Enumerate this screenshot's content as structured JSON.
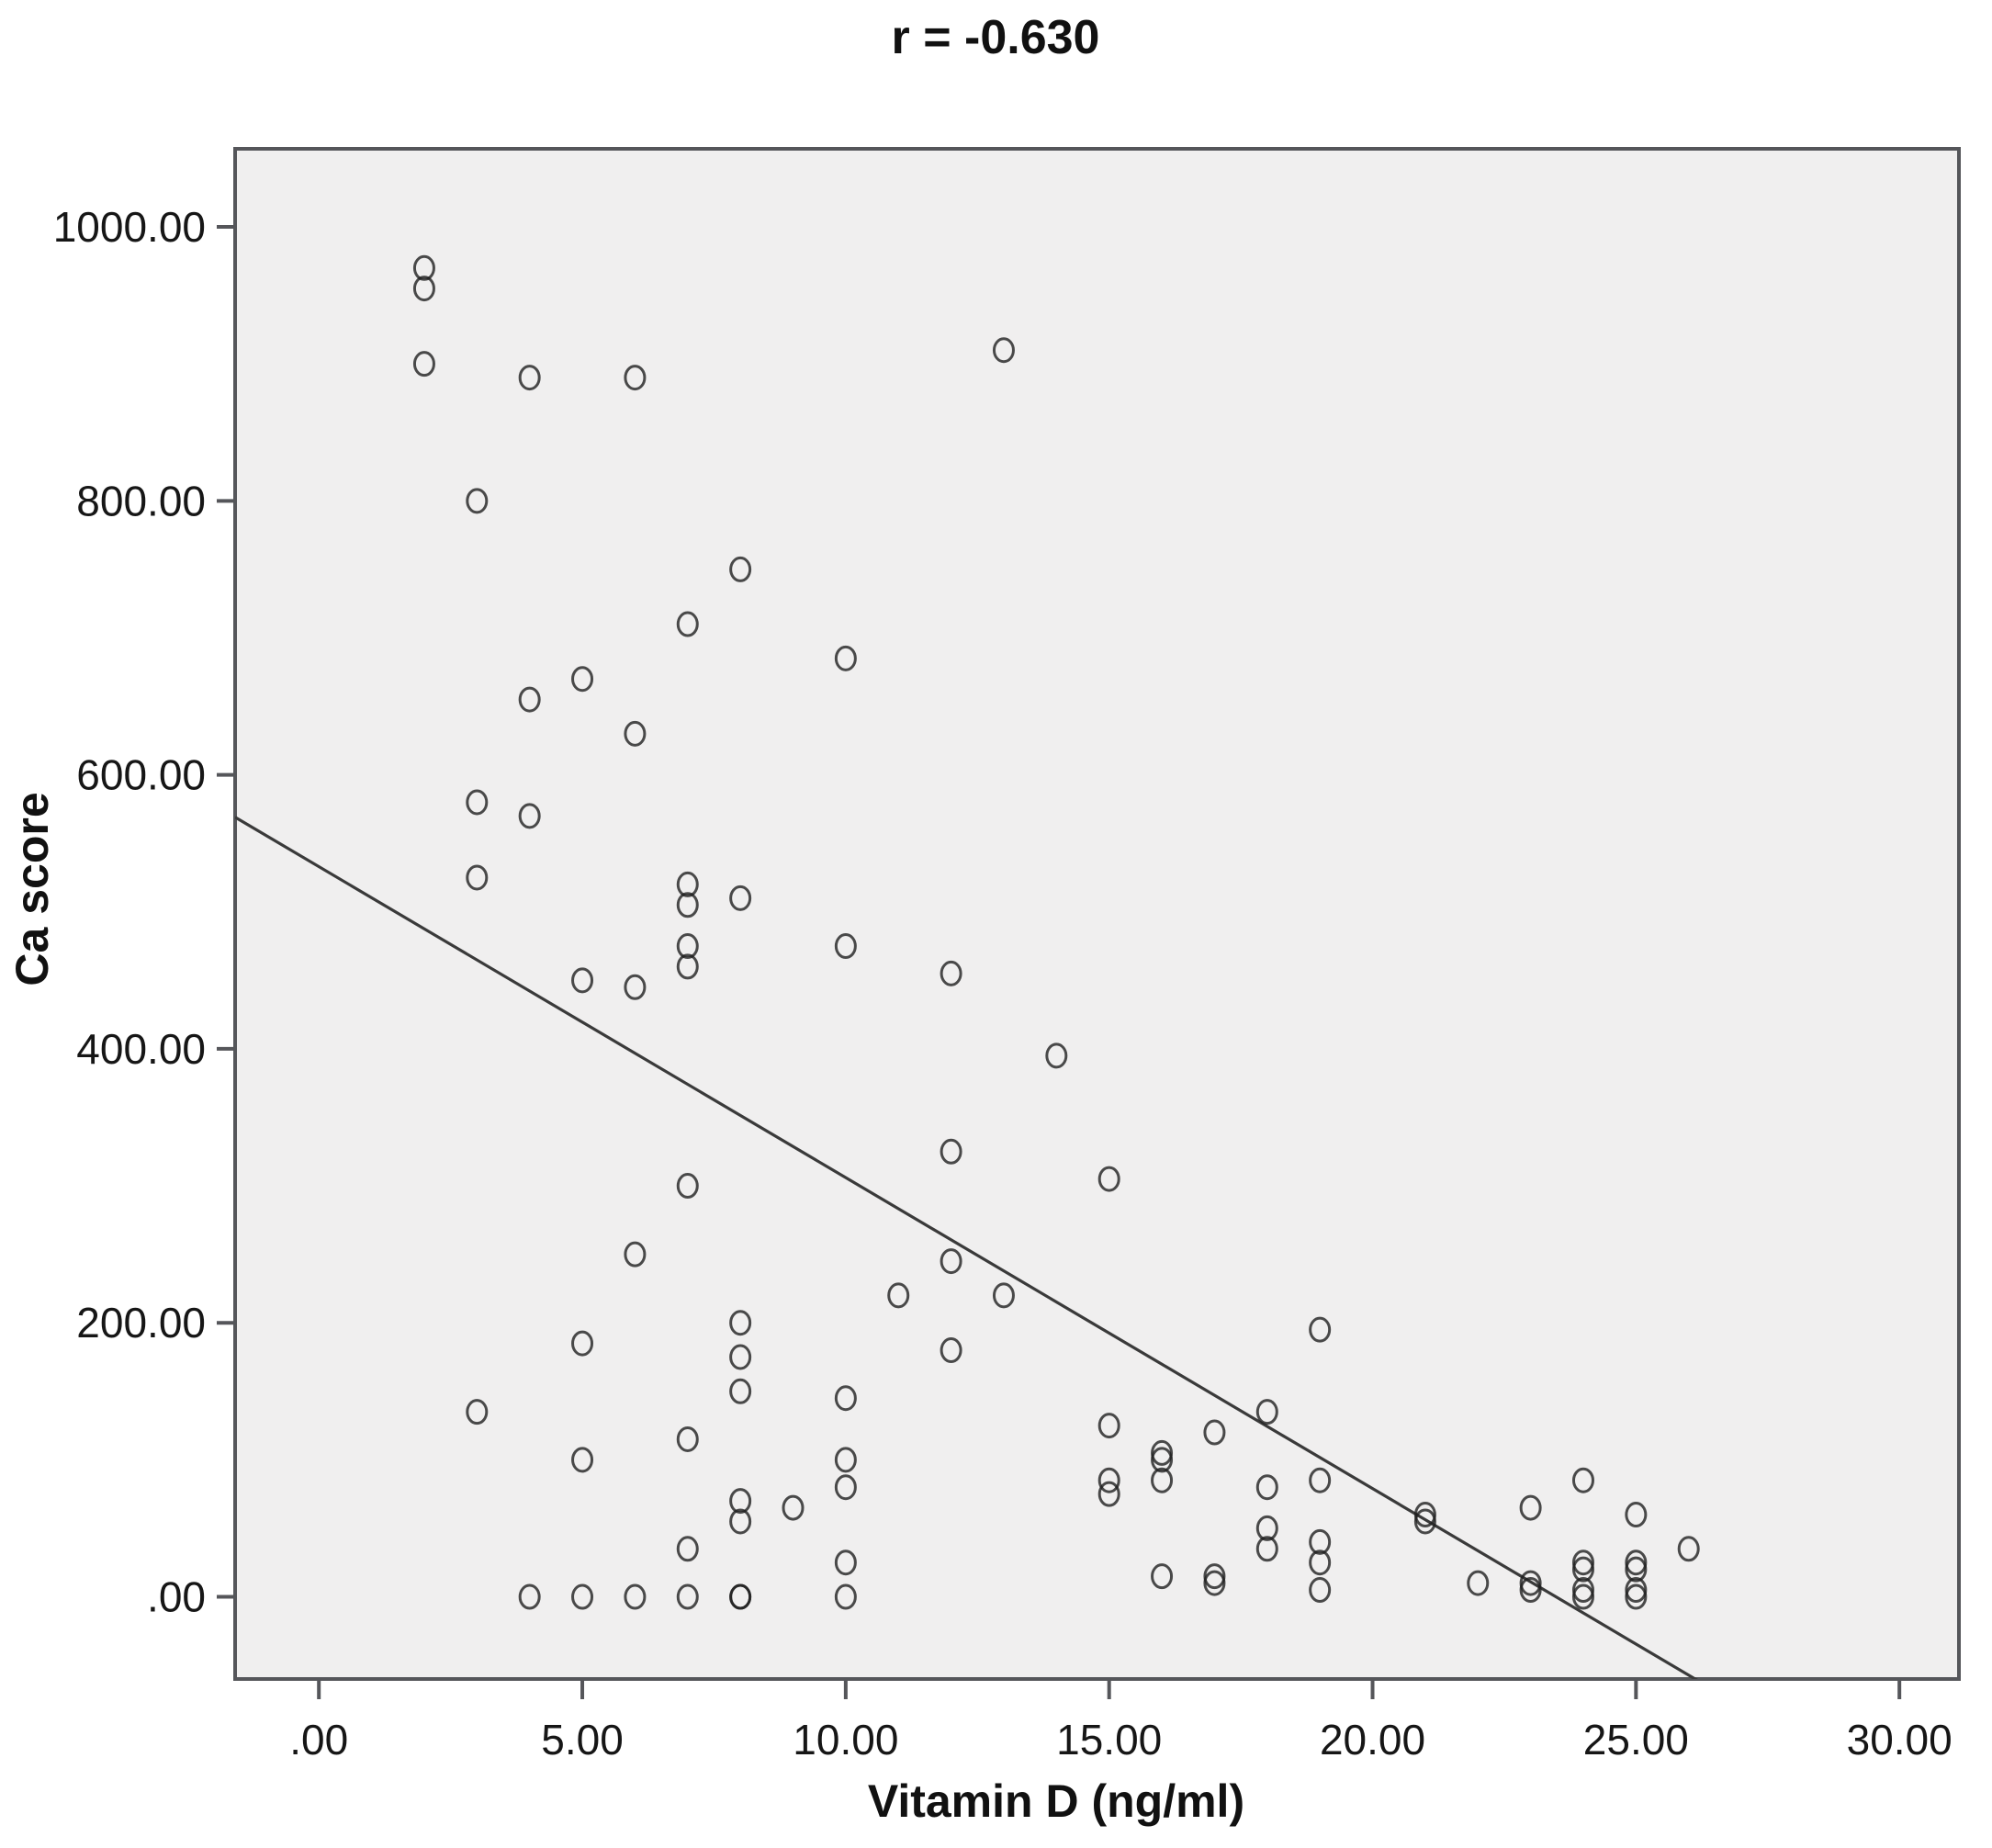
{
  "chart_data": {
    "type": "scatter",
    "title": "r = -0.630",
    "xlabel": "Vitamin D (ng/ml)",
    "ylabel": "Ca score",
    "x_ticks": [
      0,
      5,
      10,
      15,
      20,
      25,
      30
    ],
    "x_tick_labels": [
      ".00",
      "5.00",
      "10.00",
      "15.00",
      "20.00",
      "25.00",
      "30.00"
    ],
    "y_ticks": [
      0,
      200,
      400,
      600,
      800,
      1000
    ],
    "y_tick_labels": [
      ".00",
      "200.00",
      "400.00",
      "600.00",
      "800.00",
      "1000.00"
    ],
    "xlim": [
      -1.59,
      31.13
    ],
    "ylim": [
      -60,
      1057
    ],
    "grid": false,
    "legend": "none",
    "marker": "open-circle",
    "plot_bg_color": "#f0efef",
    "border_color": "#55565a",
    "point_color": "#1f1f1f",
    "line_color": "#3a3a3a",
    "regression_line": {
      "slope": -22.7,
      "intercept": 533
    },
    "points": [
      [
        2,
        970
      ],
      [
        2,
        955
      ],
      [
        2,
        900
      ],
      [
        13,
        910
      ],
      [
        4,
        890
      ],
      [
        6,
        890
      ],
      [
        3,
        800
      ],
      [
        8,
        750
      ],
      [
        7,
        710
      ],
      [
        10,
        685
      ],
      [
        5,
        670
      ],
      [
        4,
        655
      ],
      [
        6,
        630
      ],
      [
        3,
        580
      ],
      [
        4,
        570
      ],
      [
        3,
        525
      ],
      [
        7,
        520
      ],
      [
        8,
        510
      ],
      [
        7,
        505
      ],
      [
        10,
        475
      ],
      [
        7,
        475
      ],
      [
        7,
        460
      ],
      [
        12,
        455
      ],
      [
        5,
        450
      ],
      [
        6,
        445
      ],
      [
        14,
        395
      ],
      [
        12,
        325
      ],
      [
        15,
        305
      ],
      [
        7,
        300
      ],
      [
        6,
        250
      ],
      [
        12,
        245
      ],
      [
        11,
        220
      ],
      [
        13,
        220
      ],
      [
        8,
        200
      ],
      [
        19,
        195
      ],
      [
        5,
        185
      ],
      [
        12,
        180
      ],
      [
        8,
        175
      ],
      [
        8,
        150
      ],
      [
        10,
        145
      ],
      [
        3,
        135
      ],
      [
        18,
        135
      ],
      [
        15,
        125
      ],
      [
        17,
        120
      ],
      [
        7,
        115
      ],
      [
        16,
        105
      ],
      [
        16,
        100
      ],
      [
        5,
        100
      ],
      [
        10,
        100
      ],
      [
        16,
        85
      ],
      [
        19,
        85
      ],
      [
        15,
        85
      ],
      [
        24,
        85
      ],
      [
        10,
        80
      ],
      [
        18,
        80
      ],
      [
        15,
        75
      ],
      [
        8,
        70
      ],
      [
        9,
        65
      ],
      [
        23,
        65
      ],
      [
        21,
        60
      ],
      [
        25,
        60
      ],
      [
        21,
        55
      ],
      [
        8,
        55
      ],
      [
        18,
        50
      ],
      [
        7,
        35
      ],
      [
        19,
        40
      ],
      [
        18,
        35
      ],
      [
        26,
        35
      ],
      [
        19,
        25
      ],
      [
        24,
        25
      ],
      [
        25,
        25
      ],
      [
        10,
        25
      ],
      [
        24,
        20
      ],
      [
        25,
        20
      ],
      [
        16,
        15
      ],
      [
        17,
        15
      ],
      [
        22,
        10
      ],
      [
        17,
        10
      ],
      [
        23,
        10
      ],
      [
        23,
        5
      ],
      [
        19,
        5
      ],
      [
        24,
        5
      ],
      [
        25,
        5
      ],
      [
        10,
        0
      ],
      [
        24,
        0
      ],
      [
        25,
        0
      ],
      [
        4,
        0
      ],
      [
        5,
        0
      ],
      [
        6,
        0
      ],
      [
        7,
        0
      ],
      [
        8,
        0
      ],
      [
        8,
        0
      ]
    ]
  }
}
